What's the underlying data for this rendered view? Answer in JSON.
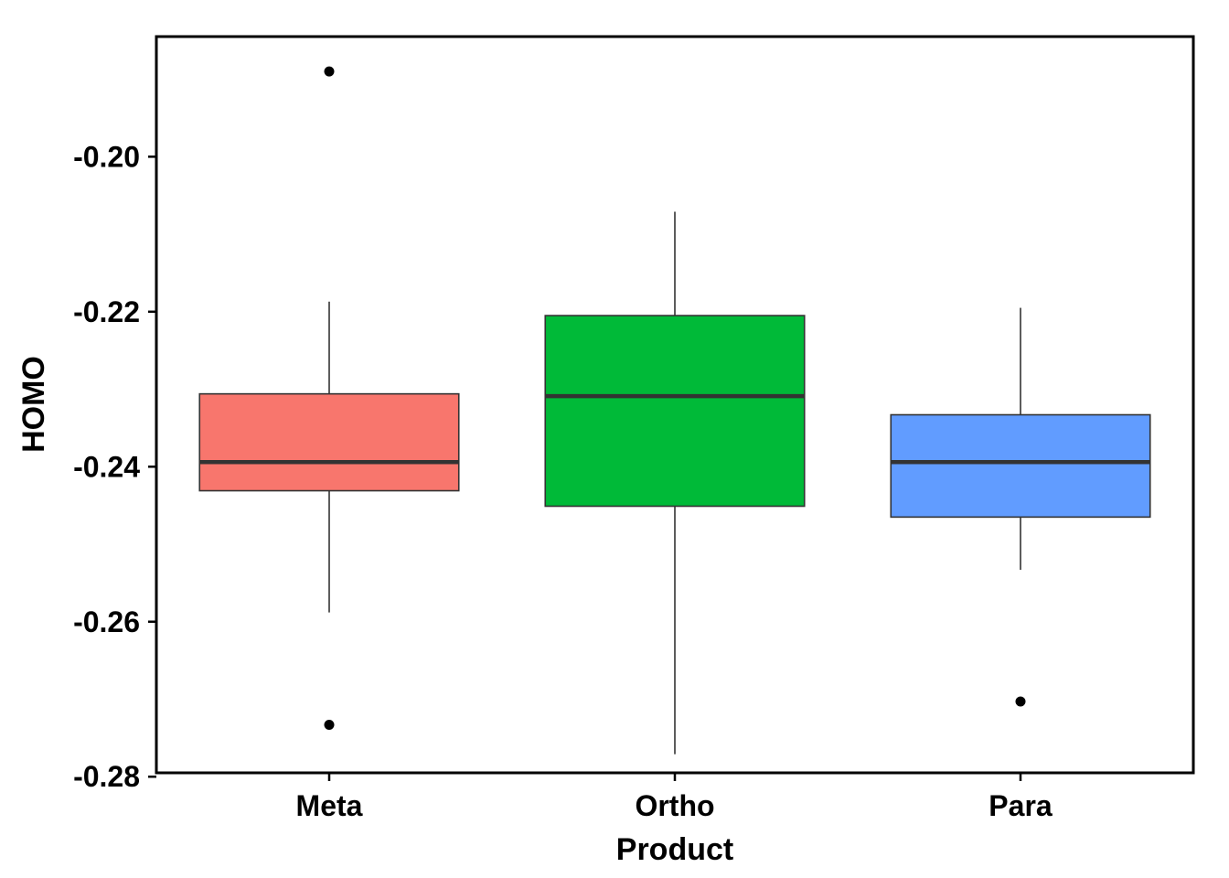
{
  "chart_data": {
    "type": "box",
    "title": "",
    "xlabel": "Product",
    "ylabel": "HOMO",
    "ylim": [
      -0.2795,
      -0.1845
    ],
    "yticks": [
      -0.2,
      -0.22,
      -0.24,
      -0.26,
      -0.28
    ],
    "ytick_labels": [
      "-0.20",
      "-0.22",
      "-0.24",
      "-0.26",
      "-0.28"
    ],
    "grid": false,
    "legend": "none",
    "categories": [
      "Meta",
      "Ortho",
      "Para"
    ],
    "boxes": [
      {
        "category": "Meta",
        "color": "#F8766D",
        "whisker_low": -0.2588,
        "q1": -0.2431,
        "median": -0.2394,
        "q3": -0.2306,
        "whisker_high": -0.2187,
        "outliers": [
          -0.189,
          -0.2733
        ]
      },
      {
        "category": "Ortho",
        "color": "#00BA38",
        "whisker_low": -0.2771,
        "q1": -0.2451,
        "median": -0.2309,
        "q3": -0.2205,
        "whisker_high": -0.2071,
        "outliers": []
      },
      {
        "category": "Para",
        "color": "#619CFF",
        "whisker_low": -0.2533,
        "q1": -0.2465,
        "median": -0.2394,
        "q3": -0.2333,
        "whisker_high": -0.2195,
        "outliers": [
          -0.2703
        ]
      }
    ]
  }
}
